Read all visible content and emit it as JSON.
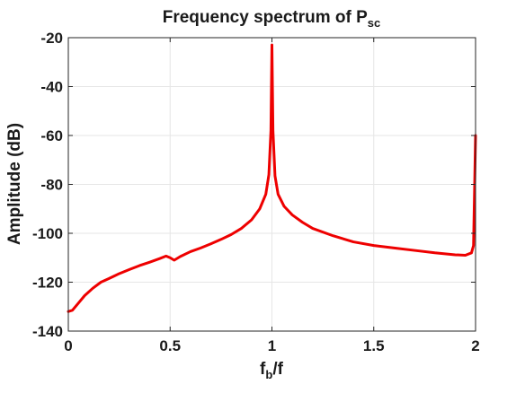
{
  "chart_data": {
    "type": "line",
    "title": "Frequency spectrum of P",
    "title_subscript": "sc",
    "xlabel": "f",
    "xlabel_subscript": "b",
    "xlabel_suffix": "/f",
    "ylabel": "Amplitude (dB)",
    "xlim": [
      0,
      2
    ],
    "ylim": [
      -140,
      -20
    ],
    "xticks": [
      0,
      0.5,
      1,
      1.5,
      2
    ],
    "xtick_labels": [
      "0",
      "0.5",
      "1",
      "1.5",
      "2"
    ],
    "yticks": [
      -140,
      -120,
      -100,
      -80,
      -60,
      -40,
      -20
    ],
    "ytick_labels": [
      "-140",
      "-120",
      "-100",
      "-80",
      "-60",
      "-40",
      "-20"
    ],
    "grid": true,
    "line_color": "#ee0000",
    "series": [
      {
        "x": [
          0,
          0.02,
          0.05,
          0.08,
          0.12,
          0.16,
          0.2,
          0.25,
          0.3,
          0.35,
          0.4,
          0.45,
          0.48,
          0.5,
          0.52,
          0.55,
          0.6,
          0.65,
          0.7,
          0.75,
          0.8,
          0.85,
          0.9,
          0.94,
          0.97,
          0.985,
          0.995,
          1.0,
          1.005,
          1.015,
          1.03,
          1.06,
          1.1,
          1.15,
          1.2,
          1.3,
          1.4,
          1.5,
          1.6,
          1.7,
          1.8,
          1.9,
          1.95,
          1.98,
          1.99,
          2.0
        ],
        "y": [
          -132,
          -131.5,
          -128.5,
          -125.5,
          -122.5,
          -120,
          -118.5,
          -116.5,
          -114.8,
          -113.2,
          -111.8,
          -110.3,
          -109.3,
          -110,
          -111,
          -109.5,
          -107.5,
          -106,
          -104.3,
          -102.5,
          -100.5,
          -98,
          -94.5,
          -90,
          -84,
          -76,
          -58,
          -23,
          -58,
          -76.5,
          -84,
          -89,
          -92.5,
          -95.5,
          -98,
          -101,
          -103.5,
          -105,
          -106,
          -107,
          -108,
          -108.8,
          -109,
          -108,
          -105,
          -60
        ]
      }
    ]
  }
}
